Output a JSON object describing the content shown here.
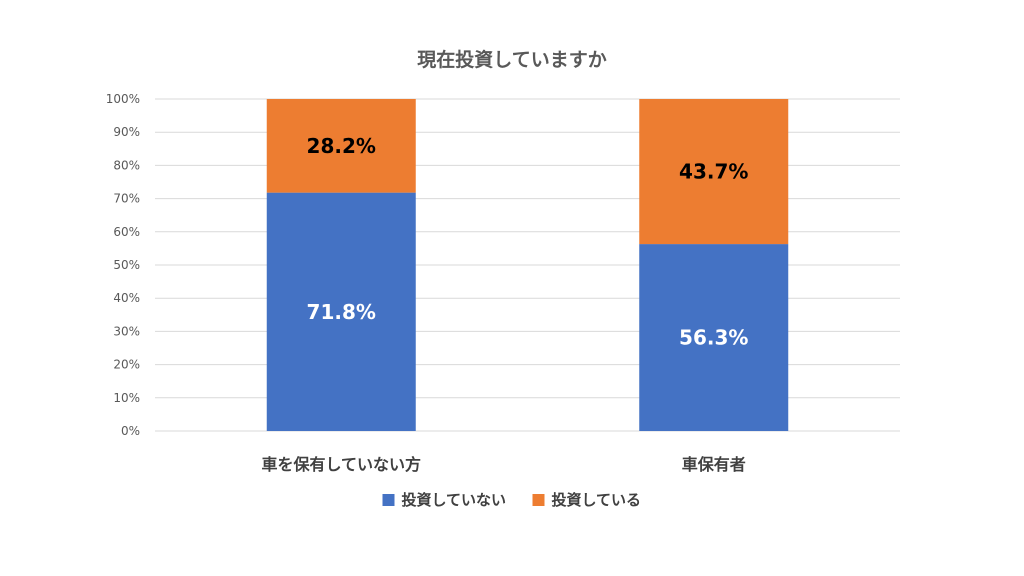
{
  "chart_data": {
    "type": "bar",
    "stacked": true,
    "title": "現在投資していますか",
    "categories": [
      "車を保有していない方",
      "車保有者"
    ],
    "series": [
      {
        "name": "投資していない",
        "values": [
          71.8,
          56.3
        ],
        "labels": [
          "71.8%",
          "56.3%"
        ],
        "color": "#4472C4",
        "label_color": "#ffffff"
      },
      {
        "name": "投資している",
        "values": [
          28.2,
          43.7
        ],
        "labels": [
          "28.2%",
          "43.7%"
        ],
        "color": "#ED7D31",
        "label_color": "#000000"
      }
    ],
    "yticks": [
      "0%",
      "10%",
      "20%",
      "30%",
      "40%",
      "50%",
      "60%",
      "70%",
      "80%",
      "90%",
      "100%"
    ],
    "ylim": [
      0,
      100
    ],
    "grid": true,
    "legend_position": "bottom",
    "gridline_color": "#D9D9D9"
  }
}
